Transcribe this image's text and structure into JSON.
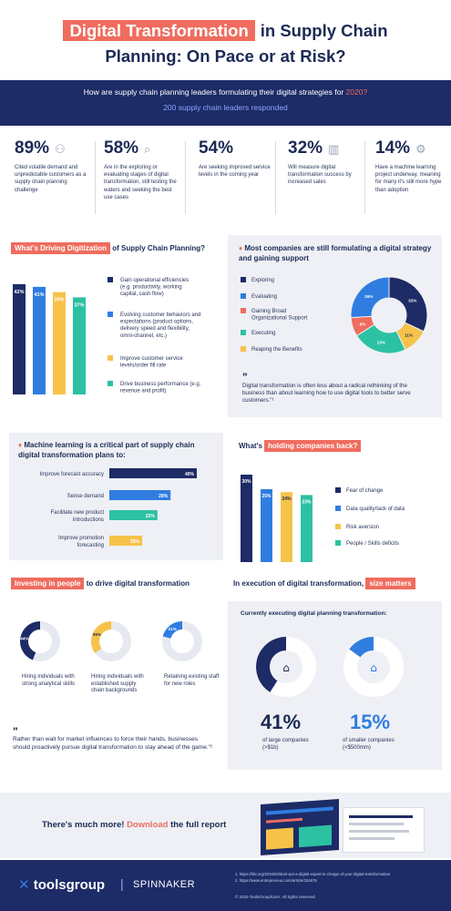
{
  "header": {
    "title_highlight": "Digital Transformation",
    "title_rest": "in Supply Chain",
    "title_line2": "Planning: On Pace or at Risk?"
  },
  "intro": {
    "question_before": "How are supply chain planning leaders formulating their digital strategies for ",
    "question_year": "2020?",
    "respondents": "200 supply chain leaders responded"
  },
  "stats": [
    {
      "pct": "89%",
      "text": "Cited volatile demand and unpredictable customers as a supply chain planning challenge"
    },
    {
      "pct": "58%",
      "text": "Are in the exploring or evaluating stages of digital transformation, still testing the waters and seeking the best use cases"
    },
    {
      "pct": "54%",
      "text": "Are seeking improved service levels in the coming year"
    },
    {
      "pct": "32%",
      "text": "Will measure digital transformation success by increased sales"
    },
    {
      "pct": "14%",
      "text": "Have a machine learning project underway, meaning for many it's still more hype than adoption"
    }
  ],
  "drivers": {
    "title_highlight": "What's Driving Digitization",
    "title_rest": "of Supply Chain Planning?"
  },
  "strategy": {
    "bullet": "♦",
    "title": "Most companies are still  formulating a digital strategy and gaining support",
    "quote_mark": "\"",
    "quote": "Digital transformation is often less about a radical rethinking of the business than about learning how to use digital tools to better serve customers.\"¹"
  },
  "ml": {
    "bullet": "♦",
    "title": "Machine learning is a critical part of supply chain digital transformation plans to:"
  },
  "holding": {
    "title_before": "What's",
    "title_highlight": "holding companies back?"
  },
  "people": {
    "title_highlight": "Investing in people",
    "title_rest": "to drive digital transformation",
    "items": [
      {
        "label": "Hiring individuals with strong analytical skills"
      },
      {
        "label": "Hiring individuals with established supply chain backgrounds"
      },
      {
        "label": "Retaining existing staff for new roles"
      }
    ],
    "quote_mark": "\"",
    "quote": "Rather than wait for market influences to force their hands, businesses should proactively pursue digital transformation to stay ahead of the game.\"²"
  },
  "size": {
    "title_before": "In execution of digital transformation,",
    "title_highlight": "size matters",
    "subtitle": "Currently executing digital planning transformation:",
    "large_pct": "41%",
    "large_label": "of large companies (>$1b)",
    "small_pct": "15%",
    "small_label": "of smaller companies (<$500mm)"
  },
  "cta": {
    "before": "There's much more!",
    "highlight": "Download",
    "after": "the full report"
  },
  "footer": {
    "logo1": "toolsgroup",
    "divider": "|",
    "logo2": "SPINNAKER",
    "ref1": "1. https://hbr.org/2019/03/dont-put-a-digital-expert-in-charge-of-your-digital-transformation",
    "ref2": "2. https://www.entrepreneur.com/article/324676",
    "copyright": "© 2019 ToolsGroup/USA. All rights reserved."
  },
  "colors": {
    "navy": "#1d2b66",
    "coral": "#ef6c5e",
    "blue": "#2f7de1",
    "yellow": "#f6c24a",
    "teal": "#2cc1a3",
    "panel": "#eef0f5"
  },
  "chart_data": [
    {
      "id": "drivers",
      "type": "bar",
      "orientation": "vertical",
      "categories": [
        "Gain operational efficiencies (e.g. productivity, working capital, cash flow)",
        "Evolving customer behaviors and expectations (product options, delivery speed and flexibility, omni-channel, etc.)",
        "Improve customer service levels/order fill rate",
        "Drive business performance (e.g. revenue and profit)"
      ],
      "values": [
        42,
        41,
        39,
        37
      ],
      "value_labels": [
        "42%",
        "41%",
        "39%",
        "37%"
      ],
      "colors": [
        "#1d2b66",
        "#2f7de1",
        "#f6c24a",
        "#2cc1a3"
      ]
    },
    {
      "id": "strategy",
      "type": "pie",
      "categories": [
        "Exploring",
        "Evaluating",
        "Gaining Broad Organizational Support",
        "Executing",
        "Reaping the Benefits"
      ],
      "values": [
        32,
        26,
        8,
        23,
        11
      ],
      "value_labels": [
        "32%",
        "26%",
        "8%",
        "23%",
        "11%"
      ],
      "colors": [
        "#1d2b66",
        "#2f7de1",
        "#ef6c5e",
        "#2cc1a3",
        "#f6c24a"
      ]
    },
    {
      "id": "ml",
      "type": "bar",
      "orientation": "horizontal",
      "categories": [
        "Improve forecast accuracy",
        "Sense demand",
        "Facilitate new product introductions",
        "Improve promotion forecasting"
      ],
      "values": [
        40,
        28,
        22,
        15
      ],
      "value_labels": [
        "40%",
        "28%",
        "22%",
        "15%"
      ],
      "colors": [
        "#1d2b66",
        "#2f7de1",
        "#2cc1a3",
        "#f6c24a"
      ]
    },
    {
      "id": "holding",
      "type": "bar",
      "orientation": "vertical",
      "categories": [
        "Fear of change",
        "Data quality/lack of data",
        "Risk aversion",
        "People / Skills deficits"
      ],
      "values": [
        30,
        25,
        24,
        23
      ],
      "value_labels": [
        "30%",
        "25%",
        "24%",
        "23%"
      ],
      "colors": [
        "#1d2b66",
        "#2f7de1",
        "#f6c24a",
        "#2cc1a3"
      ]
    },
    {
      "id": "people",
      "type": "pie",
      "items": [
        {
          "value": 44,
          "label": "44%",
          "color": "#1d2b66"
        },
        {
          "value": 35,
          "label": "35%",
          "color": "#f6c24a"
        },
        {
          "value": 21,
          "label": "21%",
          "color": "#2f7de1"
        }
      ]
    },
    {
      "id": "size",
      "type": "pie",
      "items": [
        {
          "value": 41,
          "color": "#1d2b66"
        },
        {
          "value": 15,
          "color": "#2f7de1"
        }
      ]
    }
  ]
}
